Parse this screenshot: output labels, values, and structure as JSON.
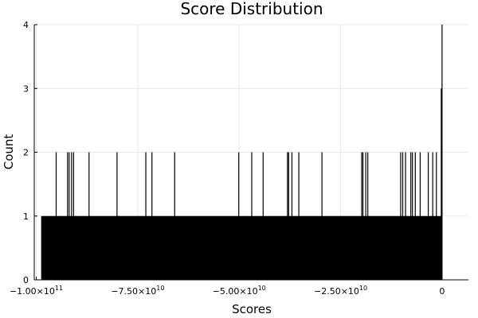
{
  "chart_data": {
    "type": "bar",
    "title": "Score Distribution",
    "xlabel": "Scores",
    "ylabel": "Count",
    "xlim": [
      -100500000000,
      6500000000
    ],
    "ylim": [
      0,
      4
    ],
    "grid": true,
    "legend": "none",
    "bar_color": "#000000",
    "x_ticks": [
      {
        "value": -100000000000,
        "mantissa": "−1.00",
        "exponent": "11"
      },
      {
        "value": -75000000000,
        "mantissa": "−7.50",
        "exponent": "10"
      },
      {
        "value": -50000000000,
        "mantissa": "−5.00",
        "exponent": "10"
      },
      {
        "value": -25000000000,
        "mantissa": "−2.50",
        "exponent": "10"
      },
      {
        "value": 0,
        "mantissa": "0",
        "exponent": ""
      }
    ],
    "y_ticks": [
      0,
      1,
      2,
      3,
      4
    ],
    "baseline": {
      "x_start": -98800000000,
      "x_end": 0,
      "count": 1
    },
    "spikes": [
      {
        "x": -94000000000,
        "count": 1
      },
      {
        "x": -95100000000,
        "count": 2
      },
      {
        "x": -92300000000,
        "count": 2
      },
      {
        "x": -91900000000,
        "count": 2
      },
      {
        "x": -91300000000,
        "count": 2
      },
      {
        "x": -90800000000,
        "count": 2
      },
      {
        "x": -90200000000,
        "count": 1
      },
      {
        "x": -87000000000,
        "count": 2
      },
      {
        "x": -80100000000,
        "count": 2
      },
      {
        "x": -79700000000,
        "count": 1
      },
      {
        "x": -73000000000,
        "count": 2
      },
      {
        "x": -71500000000,
        "count": 2
      },
      {
        "x": -65900000000,
        "count": 2
      },
      {
        "x": -50100000000,
        "count": 2
      },
      {
        "x": -46900000000,
        "count": 2
      },
      {
        "x": -44100000000,
        "count": 2
      },
      {
        "x": -38100000000,
        "count": 2
      },
      {
        "x": -37800000000,
        "count": 2
      },
      {
        "x": -37000000000,
        "count": 2
      },
      {
        "x": -35300000000,
        "count": 2
      },
      {
        "x": -29600000000,
        "count": 2
      },
      {
        "x": -19800000000,
        "count": 2
      },
      {
        "x": -19500000000,
        "count": 2
      },
      {
        "x": -18800000000,
        "count": 2
      },
      {
        "x": -18300000000,
        "count": 2
      },
      {
        "x": -10200000000,
        "count": 2
      },
      {
        "x": -9700000000,
        "count": 2
      },
      {
        "x": -9000000000,
        "count": 2
      },
      {
        "x": -7700000000,
        "count": 2
      },
      {
        "x": -7300000000,
        "count": 2
      },
      {
        "x": -6600000000,
        "count": 2
      },
      {
        "x": -5400000000,
        "count": 2
      },
      {
        "x": -3400000000,
        "count": 2
      },
      {
        "x": -2300000000,
        "count": 2
      },
      {
        "x": -1400000000,
        "count": 2
      },
      {
        "x": -200000000,
        "count": 3
      },
      {
        "x": 0,
        "count": 4
      }
    ]
  }
}
